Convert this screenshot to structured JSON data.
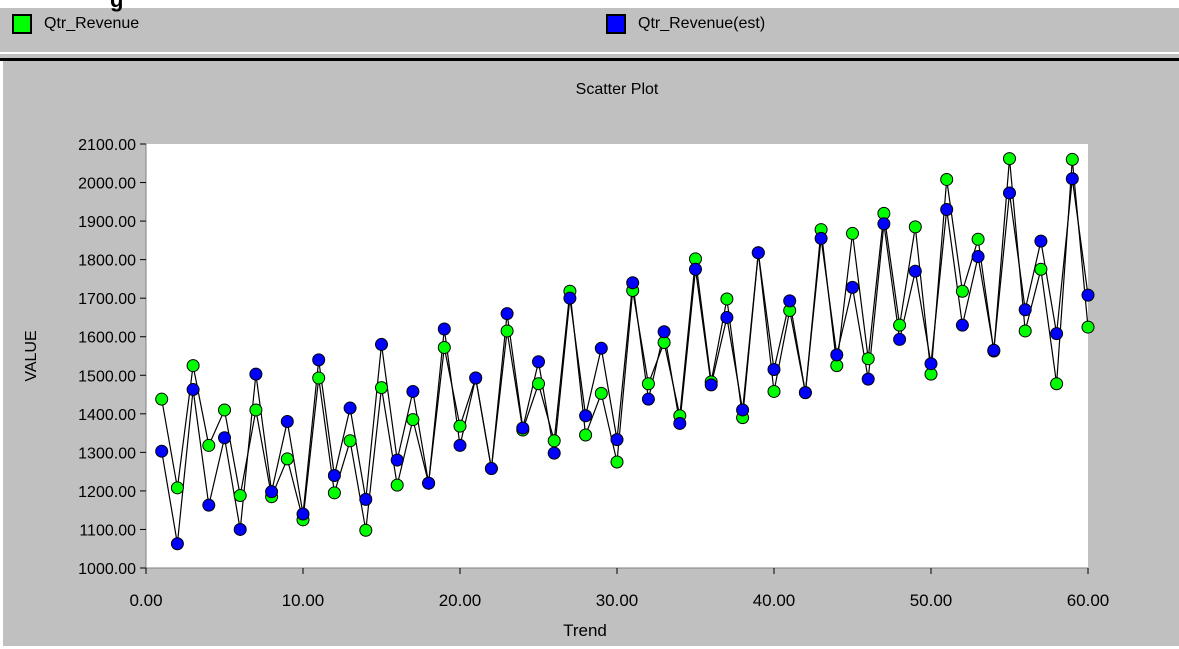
{
  "header": {
    "partial_title": "g"
  },
  "legend": [
    {
      "label": "Qtr_Revenue",
      "color": "#00ff00"
    },
    {
      "label": "Qtr_Revenue(est)",
      "color": "#0000ff"
    }
  ],
  "chart_data": {
    "type": "scatter",
    "title": "Scatter Plot",
    "xlabel": "Trend",
    "ylabel": "VALUE",
    "xlim": [
      0,
      60
    ],
    "ylim": [
      1000,
      2100
    ],
    "xticks": [
      0,
      10,
      20,
      30,
      40,
      50,
      60
    ],
    "xtick_labels": [
      "0.00",
      "10.00",
      "20.00",
      "30.00",
      "40.00",
      "50.00",
      "60.00"
    ],
    "yticks": [
      1000,
      1100,
      1200,
      1300,
      1400,
      1500,
      1600,
      1700,
      1800,
      1900,
      2000,
      2100
    ],
    "ytick_labels": [
      "1000.00",
      "1100.00",
      "1200.00",
      "1300.00",
      "1400.00",
      "1500.00",
      "1600.00",
      "1700.00",
      "1800.00",
      "1900.00",
      "2000.00",
      "2100.00"
    ],
    "grid": false,
    "legend_position": "top",
    "x": [
      1,
      2,
      3,
      4,
      5,
      6,
      7,
      8,
      9,
      10,
      11,
      12,
      13,
      14,
      15,
      16,
      17,
      18,
      19,
      20,
      21,
      22,
      23,
      24,
      25,
      26,
      27,
      28,
      29,
      30,
      31,
      32,
      33,
      34,
      35,
      36,
      37,
      38,
      39,
      40,
      41,
      42,
      43,
      44,
      45,
      46,
      47,
      48,
      49,
      50,
      51,
      52,
      53,
      54,
      55,
      56,
      57,
      58,
      59,
      60
    ],
    "series": [
      {
        "name": "Qtr_Revenue",
        "color": "#00ff00",
        "values": [
          1438,
          1208,
          1525,
          1318,
          1410,
          1188,
          1410,
          1185,
          1283,
          1125,
          1493,
          1195,
          1330,
          1098,
          1468,
          1215,
          1385,
          1220,
          1572,
          1368,
          1493,
          1258,
          1615,
          1358,
          1478,
          1330,
          1718,
          1345,
          1453,
          1275,
          1720,
          1478,
          1585,
          1395,
          1802,
          1483,
          1698,
          1390,
          1818,
          1458,
          1668,
          1455,
          1878,
          1525,
          1868,
          1543,
          1920,
          1630,
          1885,
          1503,
          2008,
          1718,
          1853,
          1563,
          2062,
          1615,
          1775,
          1478,
          2060,
          1625
        ]
      },
      {
        "name": "Qtr_Revenue(est)",
        "color": "#0000ff",
        "values": [
          1303,
          1063,
          1463,
          1163,
          1338,
          1100,
          1503,
          1198,
          1380,
          1140,
          1540,
          1240,
          1415,
          1178,
          1580,
          1280,
          1458,
          1220,
          1620,
          1318,
          1493,
          1258,
          1660,
          1363,
          1535,
          1298,
          1700,
          1395,
          1570,
          1333,
          1740,
          1438,
          1613,
          1375,
          1775,
          1475,
          1650,
          1410,
          1818,
          1515,
          1693,
          1455,
          1855,
          1553,
          1728,
          1490,
          1893,
          1593,
          1770,
          1530,
          1930,
          1630,
          1808,
          1565,
          1973,
          1670,
          1848,
          1608,
          2010,
          1708
        ]
      }
    ]
  }
}
